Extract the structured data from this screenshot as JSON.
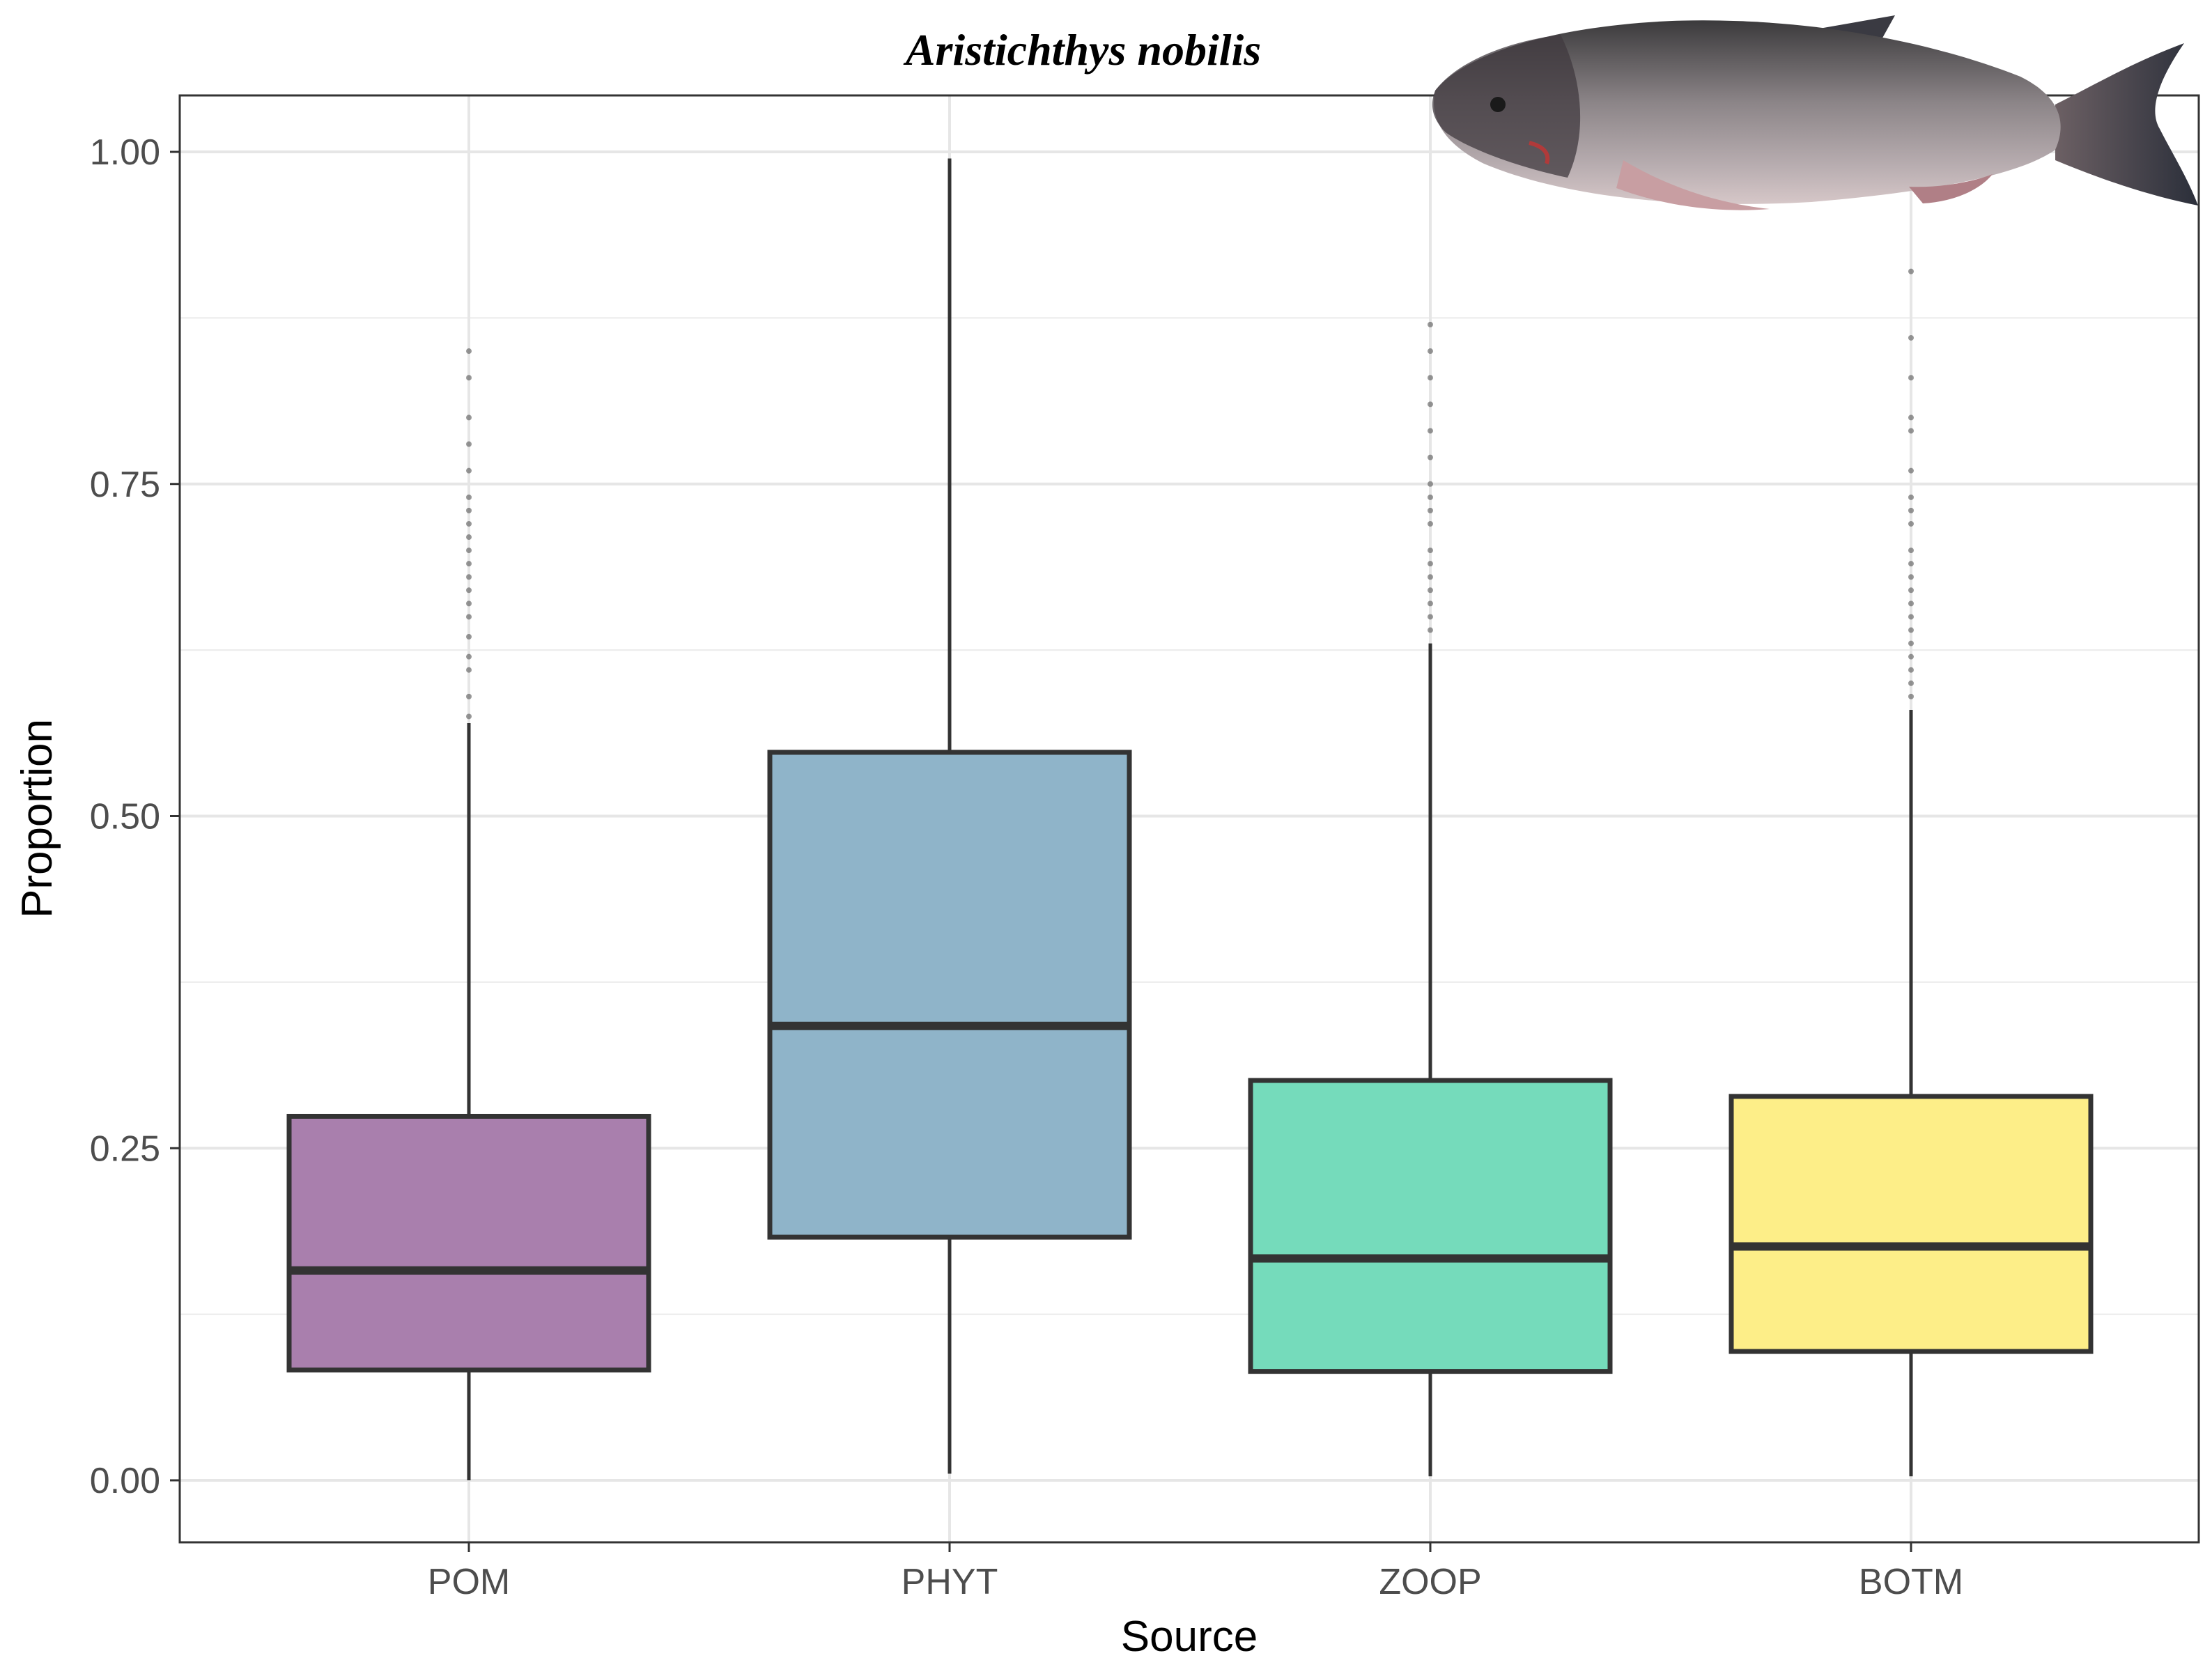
{
  "chart_data": {
    "type": "box",
    "title": "Aristichthys nobilis",
    "xlabel": "Source",
    "ylabel": "Proportion",
    "ylim": [
      -0.05,
      1.04
    ],
    "yticks": [
      "0.00",
      "0.25",
      "0.50",
      "0.75",
      "1.00"
    ],
    "ytick_values": [
      0,
      0.25,
      0.5,
      0.75,
      1.0
    ],
    "grid": true,
    "categories": [
      "POM",
      "PHYT",
      "ZOOP",
      "BOTM"
    ],
    "colors": [
      "#a97fad",
      "#8fb4c9",
      "#75dbbb",
      "#fdee88"
    ],
    "boxes": [
      {
        "name": "POM",
        "whisker_low": 0.0,
        "q1": 0.083,
        "median": 0.158,
        "q3": 0.274,
        "whisker_high": 0.57,
        "outliers": [
          0.575,
          0.59,
          0.61,
          0.62,
          0.635,
          0.65,
          0.66,
          0.67,
          0.68,
          0.69,
          0.7,
          0.71,
          0.72,
          0.73,
          0.74,
          0.76,
          0.78,
          0.8,
          0.83,
          0.85
        ]
      },
      {
        "name": "PHYT",
        "whisker_low": 0.005,
        "q1": 0.183,
        "median": 0.342,
        "q3": 0.548,
        "whisker_high": 0.995,
        "outliers": []
      },
      {
        "name": "ZOOP",
        "whisker_low": 0.003,
        "q1": 0.082,
        "median": 0.167,
        "q3": 0.301,
        "whisker_high": 0.63,
        "outliers": [
          0.64,
          0.65,
          0.66,
          0.67,
          0.68,
          0.69,
          0.7,
          0.72,
          0.73,
          0.74,
          0.75,
          0.77,
          0.79,
          0.81,
          0.83,
          0.85,
          0.87
        ]
      },
      {
        "name": "BOTM",
        "whisker_low": 0.003,
        "q1": 0.097,
        "median": 0.176,
        "q3": 0.289,
        "whisker_high": 0.58,
        "outliers": [
          0.59,
          0.6,
          0.61,
          0.62,
          0.63,
          0.64,
          0.65,
          0.66,
          0.67,
          0.68,
          0.69,
          0.7,
          0.72,
          0.73,
          0.74,
          0.76,
          0.79,
          0.8,
          0.83,
          0.86,
          0.91
        ]
      }
    ]
  },
  "image": {
    "description_icon": "fish-icon"
  }
}
